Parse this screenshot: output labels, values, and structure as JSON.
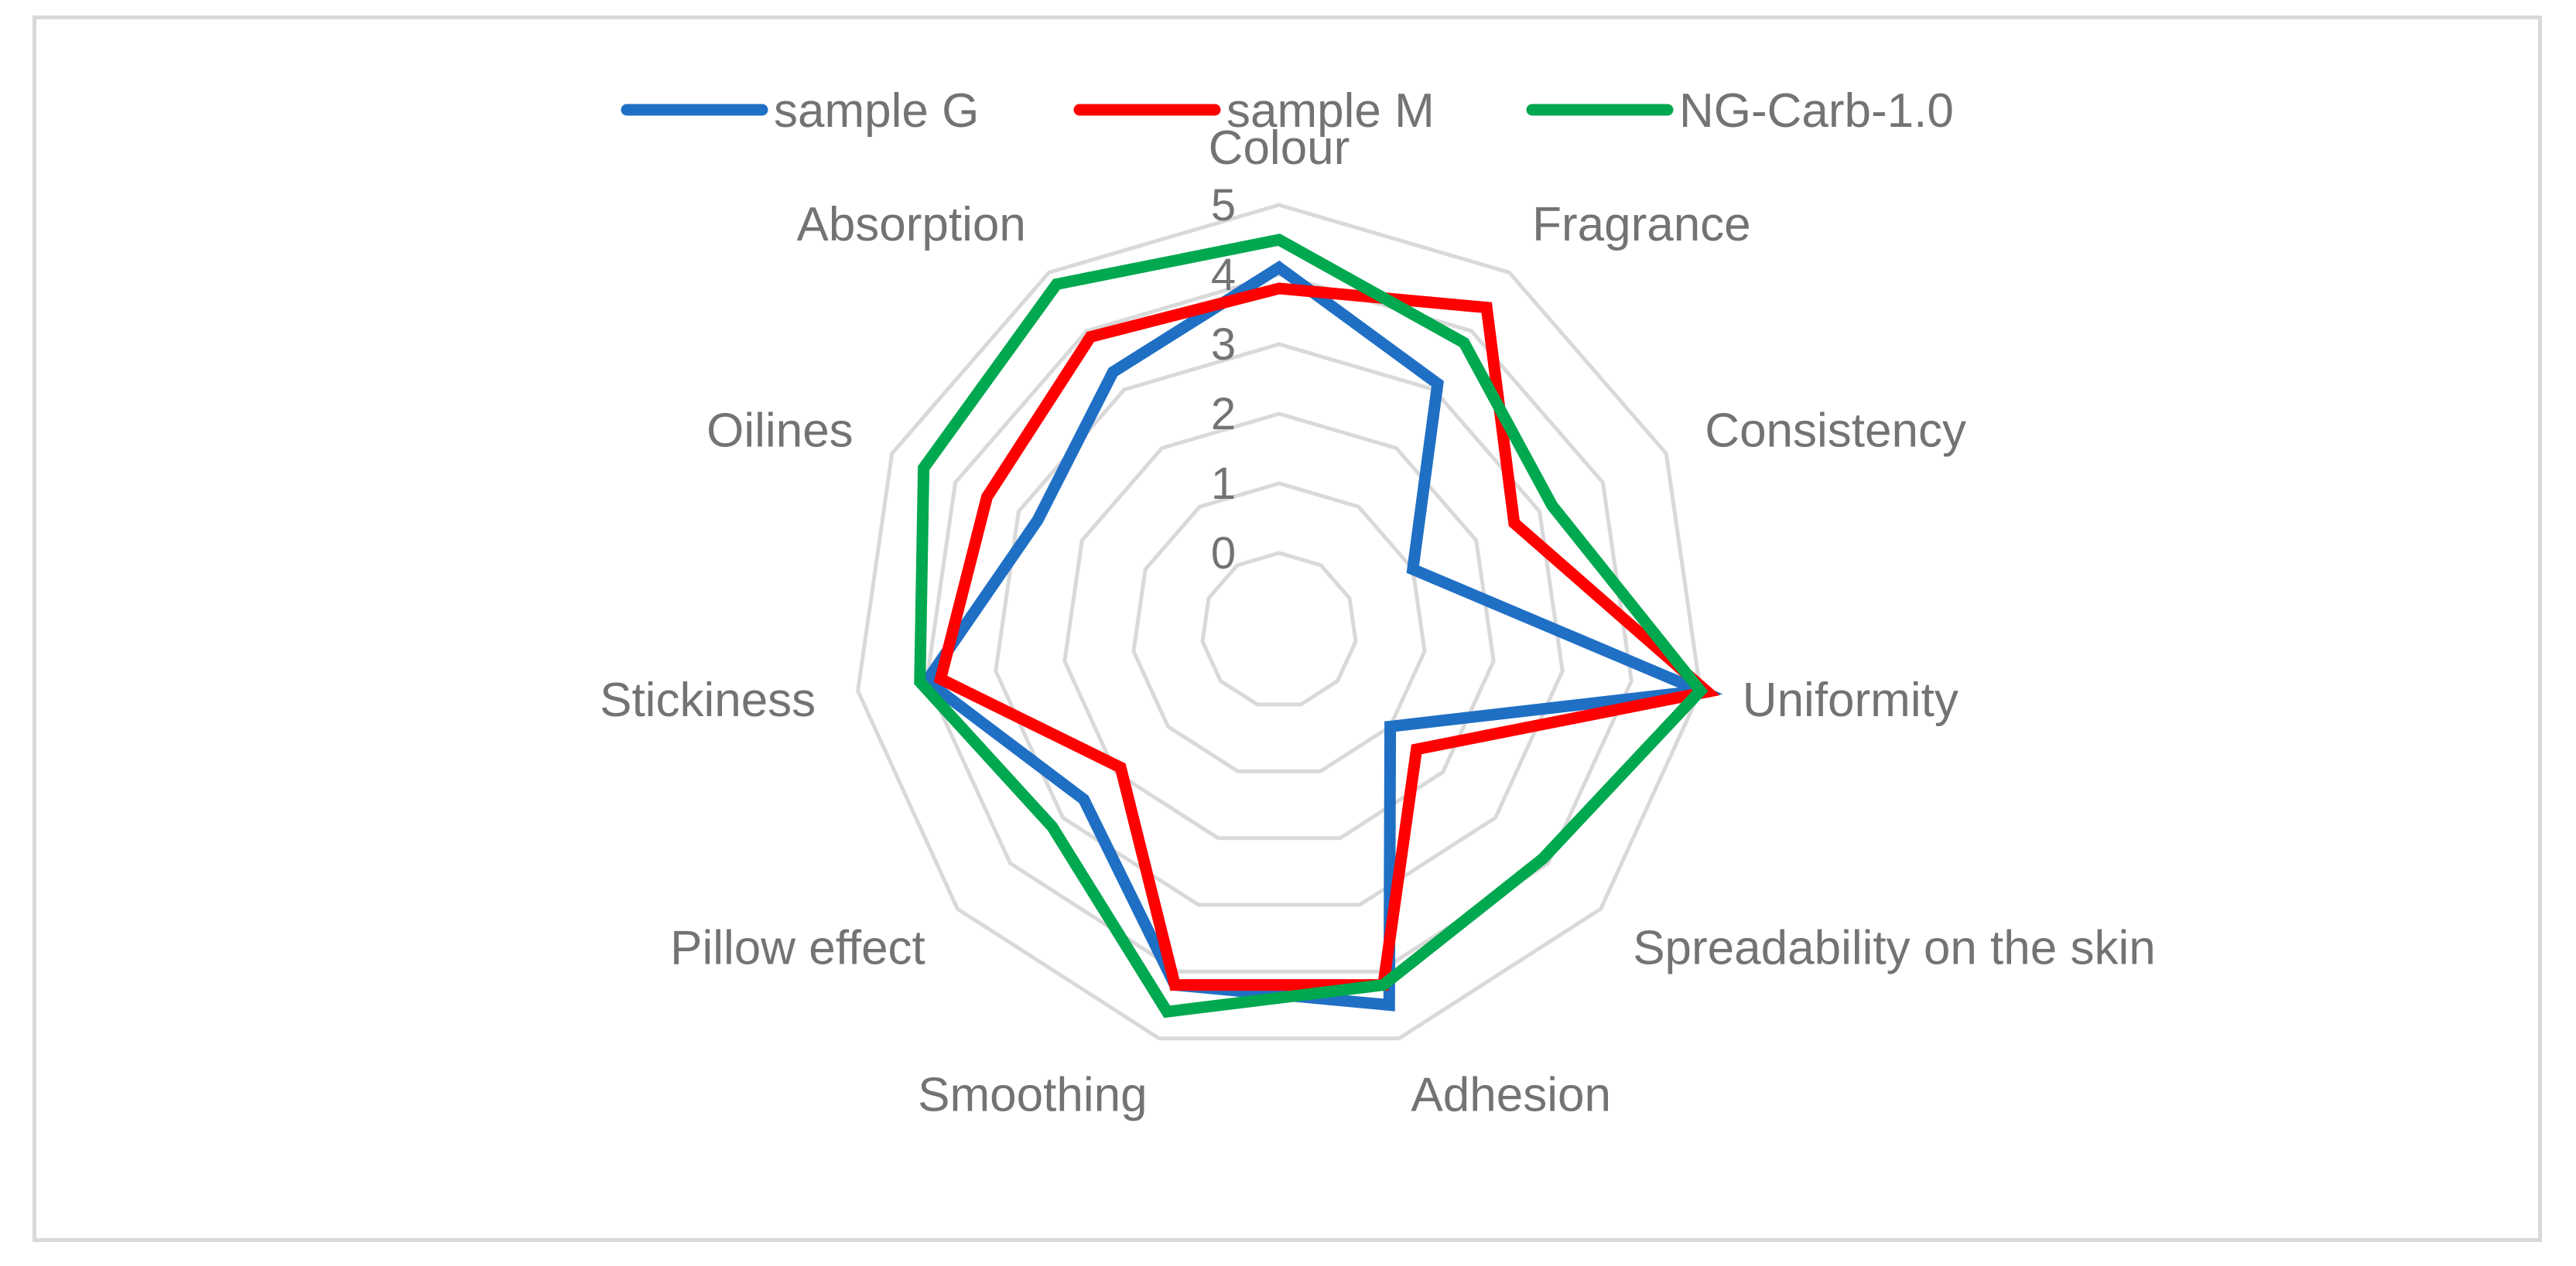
{
  "chart_data": {
    "type": "radar",
    "title": "",
    "categories": [
      "Colour",
      "Fragrance",
      "Consistency",
      "Uniformity",
      "Spreadability on the skin",
      "Adhesion",
      "Smoothing",
      "Pillow effect",
      "Stickiness",
      "Oilines",
      "Absorption"
    ],
    "ticks": [
      "0",
      "1",
      "2",
      "3",
      "4",
      "5"
    ],
    "rlim": [
      0,
      5
    ],
    "grid": true,
    "legend_position": "top",
    "series": [
      {
        "name": "sample G",
        "color": "#1f6fc5",
        "values": [
          4.1,
          3.1,
          1.0,
          5.0,
          1.0,
          4.5,
          4.2,
          2.6,
          4.0,
          2.7,
          3.3
        ]
      },
      {
        "name": "sample M",
        "color": "#ff0000",
        "values": [
          3.8,
          4.4,
          2.6,
          5.1,
          1.5,
          4.2,
          4.2,
          1.9,
          3.8,
          3.5,
          3.9
        ]
      },
      {
        "name": "NG-Carb-1.0",
        "color": "#00a84f",
        "values": [
          4.5,
          3.8,
          3.2,
          5.0,
          3.9,
          4.2,
          4.6,
          3.2,
          4.1,
          4.5,
          4.8
        ]
      }
    ]
  }
}
